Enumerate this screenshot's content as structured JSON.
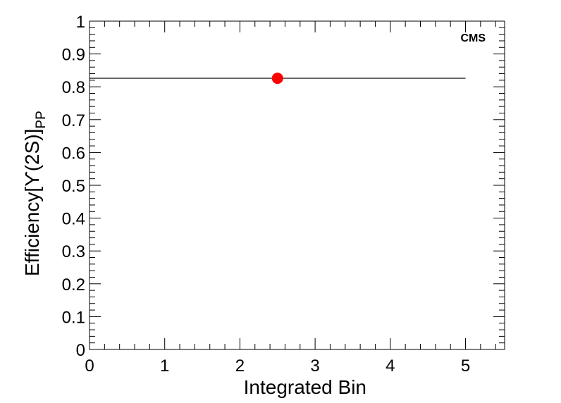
{
  "chart_data": {
    "type": "scatter",
    "title": "",
    "xlabel": "Integrated Bin",
    "ylabel": "Efficiency[ϒ(2S)]",
    "ylabel_subscript": "PP",
    "annotation": "CMS",
    "xlim": [
      0,
      5.52
    ],
    "ylim": [
      0,
      1
    ],
    "x_ticks": [
      "0",
      "1",
      "2",
      "3",
      "4",
      "5"
    ],
    "y_ticks": [
      "0",
      "0.1",
      "0.2",
      "0.3",
      "0.4",
      "0.5",
      "0.6",
      "0.7",
      "0.8",
      "0.9",
      "1"
    ],
    "grid": false,
    "points": [
      {
        "x": 2.5,
        "y": 0.826,
        "xerr_low": 2.5,
        "xerr_high": 2.5
      }
    ],
    "marker_color": "#ff0000",
    "errorbar_color": "#000000"
  }
}
